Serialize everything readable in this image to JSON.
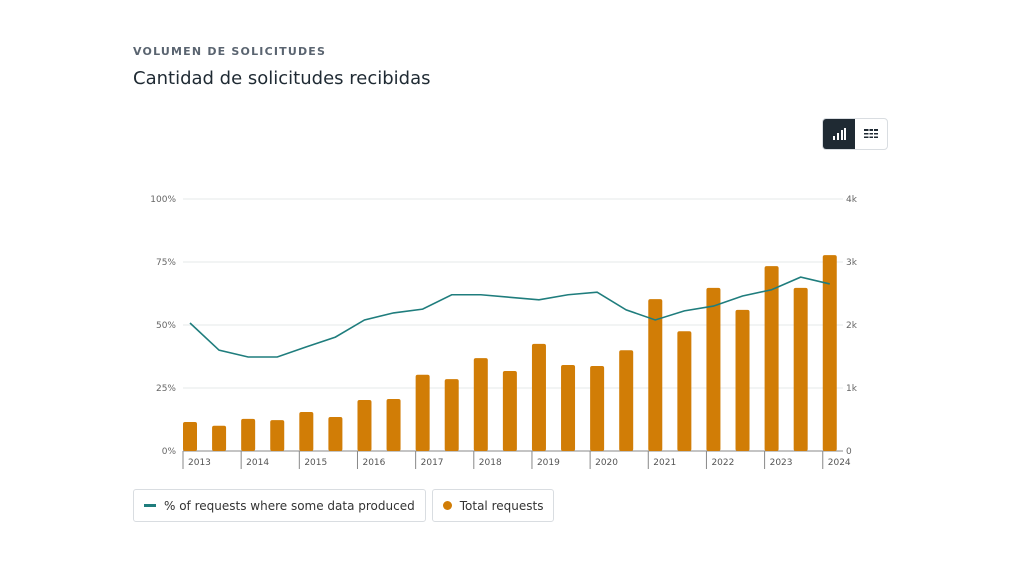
{
  "header": {
    "eyebrow": "VOLUMEN DE SOLICITUDES",
    "title": "Cantidad de solicitudes recibidas"
  },
  "view_toggle": {
    "options": [
      {
        "icon": "bar-chart-icon",
        "active": true
      },
      {
        "icon": "table-icon",
        "active": false
      }
    ]
  },
  "colors": {
    "line": "#1f7d7d",
    "bar": "#d17d06",
    "grid": "#e6e8ea",
    "dark": "#1f2a33"
  },
  "chart_data": {
    "type": "bar+line",
    "x_ticks": [
      "2013",
      "2014",
      "2015",
      "2016",
      "2017",
      "2018",
      "2019",
      "2020",
      "2021",
      "2022",
      "2023",
      "2024"
    ],
    "y_left": {
      "ticks": [
        "0%",
        "25%",
        "50%",
        "75%",
        "100%"
      ],
      "range": [
        0,
        100
      ]
    },
    "y_right": {
      "ticks": [
        "0",
        "1k",
        "2k",
        "3k",
        "4k"
      ],
      "range": [
        0,
        4000
      ]
    },
    "grid": true,
    "legend_position": "bottom-left",
    "series": [
      {
        "name": "% of requests where some data produced",
        "type": "line",
        "axis": "left",
        "values": [
          50.8,
          40,
          37.3,
          37.3,
          41.3,
          45.2,
          52,
          54.8,
          56.3,
          62,
          62,
          61,
          60,
          62,
          63,
          56,
          52,
          55.6,
          57.5,
          61.5,
          64,
          69,
          66.3
        ]
      },
      {
        "name": "Total requests",
        "type": "bar",
        "axis": "right",
        "values": [
          460,
          400,
          510,
          490,
          620,
          540,
          810,
          825,
          1210,
          1140,
          1475,
          1270,
          1700,
          1365,
          1350,
          1600,
          2410,
          1900,
          2590,
          2240,
          2935,
          2590,
          3110
        ]
      }
    ]
  }
}
